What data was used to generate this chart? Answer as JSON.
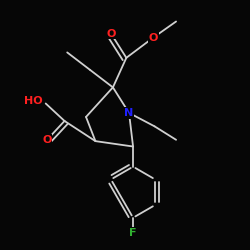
{
  "bg_color": "#060606",
  "bond_color": "#d0d0d0",
  "atom_colors": {
    "O": "#ff2020",
    "N": "#2020ff",
    "F": "#30b030",
    "C": "#d0d0d0"
  },
  "bond_width": 1.3,
  "font_size": 8.0
}
